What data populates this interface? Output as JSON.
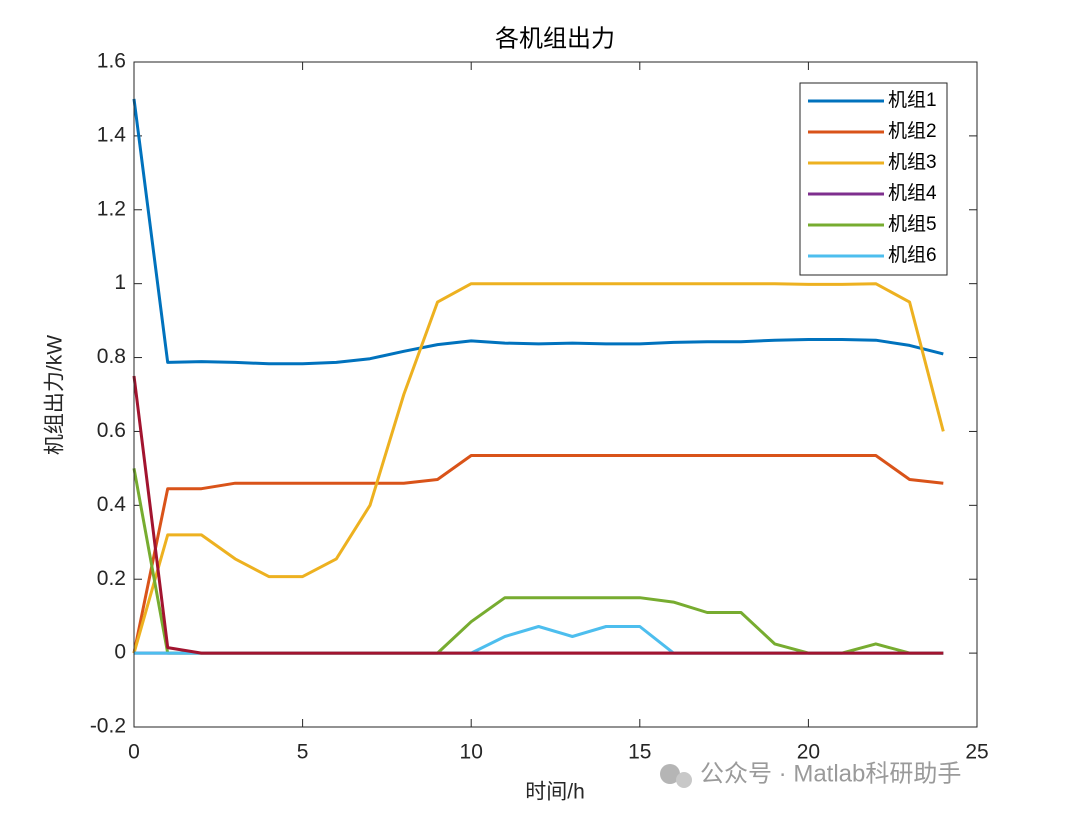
{
  "chart_data": {
    "type": "line",
    "title": "各机组出力",
    "x_label": "时间/h",
    "y_label": "机组出力/kW",
    "watermark": "公众号 · Matlab科研助手",
    "x": [
      0,
      1,
      2,
      3,
      4,
      5,
      6,
      7,
      8,
      9,
      10,
      11,
      12,
      13,
      14,
      15,
      16,
      17,
      18,
      19,
      20,
      21,
      22,
      23,
      24
    ],
    "xlim": [
      0,
      25
    ],
    "xticks": [
      0,
      5,
      10,
      15,
      20,
      25
    ],
    "ylim": [
      -0.2,
      1.6
    ],
    "yticks": [
      -0.2,
      0,
      0.2,
      0.4,
      0.6,
      0.8,
      1,
      1.2,
      1.4,
      1.6
    ],
    "grid": false,
    "legend_position": "northeast",
    "series": [
      {
        "name": "机组1",
        "color": "#0072BD",
        "values": [
          1.5,
          0.787,
          0.789,
          0.787,
          0.783,
          0.783,
          0.787,
          0.797,
          0.817,
          0.835,
          0.845,
          0.839,
          0.837,
          0.839,
          0.837,
          0.837,
          0.841,
          0.843,
          0.843,
          0.847,
          0.849,
          0.849,
          0.847,
          0.833,
          0.81
        ]
      },
      {
        "name": "机组2",
        "color": "#D95319",
        "values": [
          0,
          0.445,
          0.445,
          0.46,
          0.46,
          0.46,
          0.46,
          0.46,
          0.46,
          0.47,
          0.535,
          0.535,
          0.535,
          0.535,
          0.535,
          0.535,
          0.535,
          0.535,
          0.535,
          0.535,
          0.535,
          0.535,
          0.535,
          0.47,
          0.46
        ]
      },
      {
        "name": "机组3",
        "color": "#EDB120",
        "values": [
          0,
          0.32,
          0.32,
          0.255,
          0.207,
          0.207,
          0.255,
          0.4,
          0.7,
          0.95,
          1,
          1,
          1,
          1,
          1,
          1,
          1,
          1,
          1,
          1,
          0.998,
          0.998,
          1,
          0.95,
          0.6
        ]
      },
      {
        "name": "机组4",
        "color": "#7E2F8E",
        "values": [
          0,
          0,
          0,
          0,
          0,
          0,
          0,
          0,
          0,
          0,
          0,
          0,
          0,
          0,
          0,
          0,
          0,
          0,
          0,
          0,
          0,
          0,
          0,
          0,
          0
        ]
      },
      {
        "name": "机组5",
        "color": "#77AC30",
        "values": [
          0.5,
          0,
          0,
          0,
          0,
          0,
          0,
          0,
          0,
          0,
          0.085,
          0.15,
          0.15,
          0.15,
          0.15,
          0.15,
          0.138,
          0.11,
          0.11,
          0.025,
          0,
          0,
          0.025,
          0,
          0
        ]
      },
      {
        "name": "机组6",
        "color": "#4DBEEE",
        "values": [
          0,
          0,
          0,
          0,
          0,
          0,
          0,
          0,
          0,
          0,
          0,
          0.045,
          0.072,
          0.045,
          0.072,
          0.072,
          0,
          0,
          0,
          0,
          0,
          0,
          0,
          0,
          0
        ]
      },
      {
        "color": "#A2142F",
        "values": [
          0.75,
          0.015,
          0,
          0,
          0,
          0,
          0,
          0,
          0,
          0,
          0,
          0,
          0,
          0,
          0,
          0,
          0,
          0,
          0,
          0,
          0,
          0,
          0,
          0,
          0
        ]
      }
    ]
  }
}
